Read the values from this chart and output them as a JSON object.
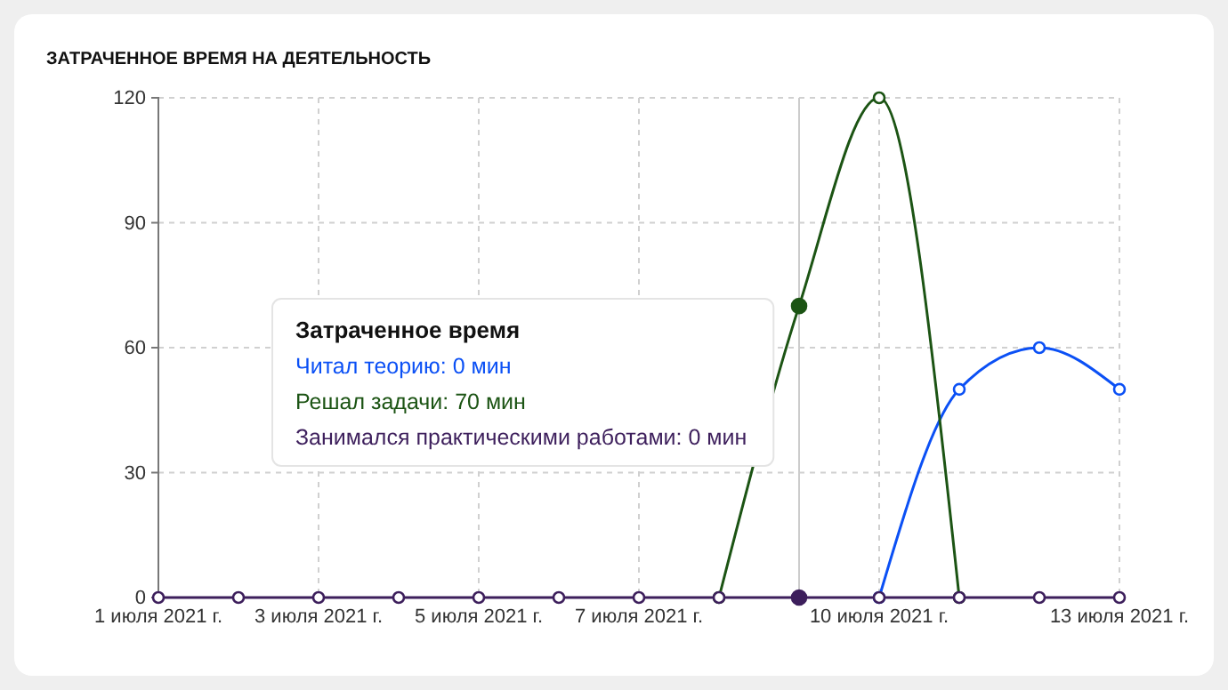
{
  "chart_data": {
    "type": "line",
    "title": "ЗАТРАЧЕННОЕ ВРЕМЯ НА ДЕЯТЕЛЬНОСТЬ",
    "x": [
      "2021-07-01",
      "2021-07-02",
      "2021-07-03",
      "2021-07-04",
      "2021-07-05",
      "2021-07-06",
      "2021-07-07",
      "2021-07-08",
      "2021-07-09",
      "2021-07-10",
      "2021-07-11",
      "2021-07-12",
      "2021-07-13"
    ],
    "series": [
      {
        "name": "Читал теорию",
        "color": "#0b50f5",
        "values": [
          null,
          null,
          null,
          null,
          null,
          null,
          null,
          null,
          null,
          0,
          50,
          60,
          50
        ]
      },
      {
        "name": "Решал задачи",
        "color": "#1c5414",
        "values": [
          null,
          null,
          null,
          null,
          null,
          null,
          null,
          0,
          70,
          120,
          0,
          null,
          null
        ]
      },
      {
        "name": "Занимался практическими работами",
        "color": "#3d1f5c",
        "values": [
          0,
          0,
          0,
          0,
          0,
          0,
          0,
          0,
          0,
          0,
          0,
          0,
          0
        ]
      }
    ],
    "xlim": [
      "2021-07-01",
      "2021-07-13"
    ],
    "xticks": [
      {
        "value": "2021-07-01",
        "label": "1 июля 2021 г."
      },
      {
        "value": "2021-07-03",
        "label": "3 июля 2021 г."
      },
      {
        "value": "2021-07-05",
        "label": "5 июля 2021 г."
      },
      {
        "value": "2021-07-07",
        "label": "7 июля 2021 г."
      },
      {
        "value": "2021-07-10",
        "label": "10 июля 2021 г."
      },
      {
        "value": "2021-07-13",
        "label": "13 июля 2021 г."
      }
    ],
    "ylim": [
      0,
      120
    ],
    "yticks": [
      0,
      30,
      60,
      90,
      120
    ],
    "grid": true,
    "legend": false,
    "marker": "circle",
    "line_style": "solid",
    "ref_lines": [
      {
        "axis": "x",
        "value": "2021-07-09",
        "color": "#cccccc"
      }
    ],
    "annotations": [
      "Затраченное время",
      ": 0 мин",
      ": 70 мин",
      ": 0 мин"
    ]
  }
}
